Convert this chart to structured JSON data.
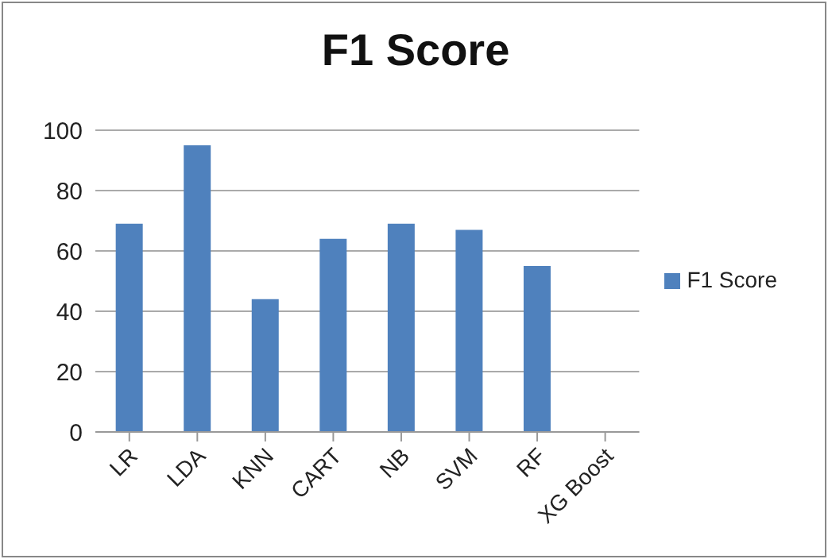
{
  "chart_data": {
    "type": "bar",
    "title": "F1 Score",
    "categories": [
      "LR",
      "LDA",
      "KNN",
      "CART",
      "NB",
      "SVM",
      "RF",
      "XG Boost"
    ],
    "series": [
      {
        "name": "F1 Score",
        "color": "#4f81bd",
        "values": [
          69,
          95,
          44,
          64,
          69,
          67,
          55,
          null
        ]
      }
    ],
    "ylim": [
      0,
      100
    ],
    "yticks": [
      0,
      20,
      40,
      60,
      80,
      100
    ],
    "grid": "y",
    "legend": "right"
  }
}
